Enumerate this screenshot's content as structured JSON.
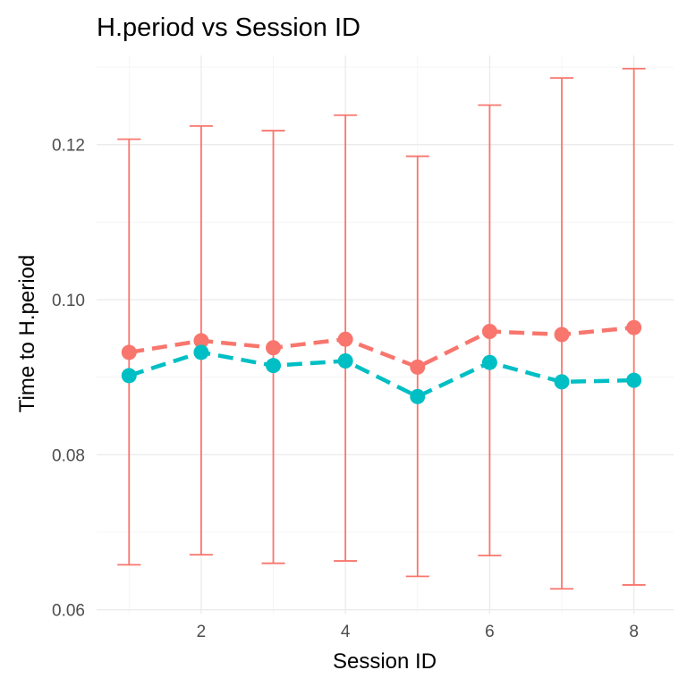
{
  "chart_data": {
    "type": "line",
    "title": "H.period vs Session ID",
    "xlabel": "Session ID",
    "ylabel": "Time to H.period",
    "x": [
      1,
      2,
      3,
      4,
      5,
      6,
      7,
      8
    ],
    "xlim": [
      0.55,
      8.55
    ],
    "ylim": [
      0.0595,
      0.1315
    ],
    "x_ticks": [
      2,
      4,
      6,
      8
    ],
    "y_ticks": [
      0.06,
      0.08,
      0.1,
      0.12
    ],
    "y_tick_labels": [
      "0.06",
      "0.08",
      "0.10",
      "0.12"
    ],
    "grid": true,
    "legend": "none",
    "series": [
      {
        "color": "#F8766D",
        "line_style": "dashed",
        "values": [
          0.0932,
          0.0947,
          0.0938,
          0.0949,
          0.0913,
          0.0959,
          0.0955,
          0.0964
        ],
        "error_low": [
          0.0658,
          0.0671,
          0.066,
          0.0663,
          0.0643,
          0.067,
          0.0627,
          0.0632
        ],
        "error_high": [
          0.1207,
          0.1224,
          0.1218,
          0.1238,
          0.1185,
          0.1251,
          0.1286,
          0.1298
        ]
      },
      {
        "color": "#00BFC4",
        "line_style": "dashed",
        "values": [
          0.0902,
          0.0932,
          0.0915,
          0.0921,
          0.0875,
          0.0919,
          0.0894,
          0.0896
        ]
      }
    ]
  }
}
